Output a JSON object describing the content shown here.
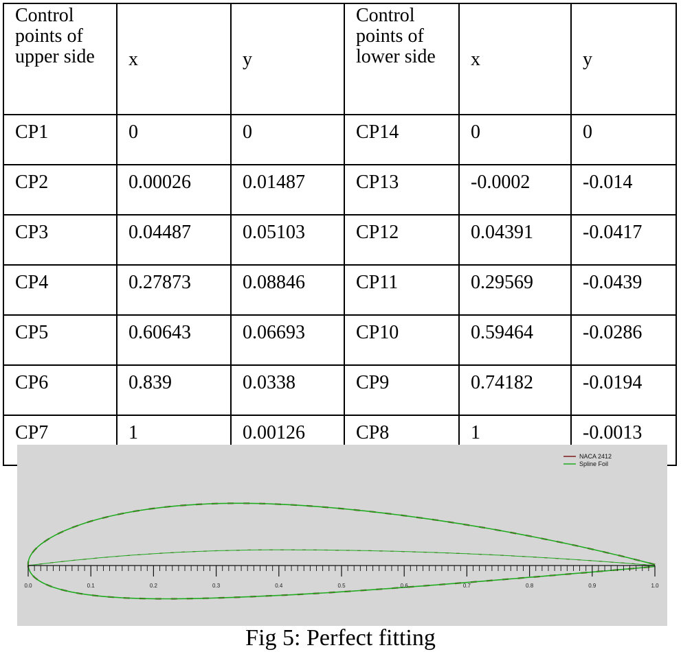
{
  "table": {
    "headers": [
      "Control points of upper side",
      "x",
      "y",
      "Control points of lower side",
      "x",
      "y"
    ],
    "rows": [
      [
        "CP1",
        "0",
        "0",
        "CP14",
        "0",
        "0"
      ],
      [
        "CP2",
        "0.00026",
        "0.01487",
        "CP13",
        "-0.0002",
        "-0.014"
      ],
      [
        "CP3",
        "0.04487",
        "0.05103",
        "CP12",
        "0.04391",
        "-0.0417"
      ],
      [
        "CP4",
        "0.27873",
        "0.08846",
        "CP11",
        "0.29569",
        "-0.0439"
      ],
      [
        "CP5",
        "0.60643",
        "0.06693",
        "CP10",
        "0.59464",
        "-0.0286"
      ],
      [
        "CP6",
        "0.839",
        "0.0338",
        "CP9",
        "0.74182",
        "-0.0194"
      ],
      [
        "CP7",
        "1",
        "0.00126",
        "CP8",
        "1",
        "-0.0013"
      ]
    ]
  },
  "figure": {
    "caption": "Fig 5: Perfect fitting"
  },
  "chart_data": {
    "type": "line",
    "title": "",
    "xlabel": "",
    "ylabel": "",
    "xlim": [
      0.0,
      1.0
    ],
    "x_ticks": [
      "0.0",
      "0.1",
      "0.2",
      "0.3",
      "0.4",
      "0.5",
      "0.6",
      "0.7",
      "0.8",
      "0.9",
      "1.0"
    ],
    "legend_position": "top-right",
    "grid": false,
    "series": [
      {
        "name": "NACA 2412",
        "color": "#7a1a1a"
      },
      {
        "name": "Spline Foil",
        "color": "#1faa1f"
      }
    ]
  }
}
